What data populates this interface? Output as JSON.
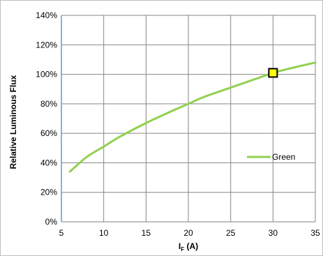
{
  "chart_data": {
    "type": "line",
    "ylabel": "Relative Luminous Flux",
    "xlabel_main": "I",
    "xlabel_sub": "F",
    "xlabel_unit": " (A)",
    "xlim": [
      5,
      35
    ],
    "ylim": [
      0,
      140
    ],
    "x_ticks": [
      5,
      10,
      15,
      20,
      25,
      30,
      35
    ],
    "x_tick_labels": [
      "5",
      "10",
      "15",
      "20",
      "25",
      "30",
      "35"
    ],
    "y_ticks": [
      0,
      20,
      40,
      60,
      80,
      100,
      120,
      140
    ],
    "y_tick_labels": [
      "0%",
      "20%",
      "40%",
      "60%",
      "80%",
      "100%",
      "120%",
      "140%"
    ],
    "grid": true,
    "legend_position": "right",
    "series": [
      {
        "name": "Green",
        "color": "#92d050",
        "x": [
          6,
          8,
          10,
          12,
          15,
          18,
          20,
          22,
          25,
          28,
          30,
          32,
          35
        ],
        "y": [
          34,
          44,
          51,
          58,
          67,
          75,
          80,
          85,
          91,
          97,
          101,
          104,
          108
        ]
      }
    ],
    "marker": {
      "x": 30,
      "y": 101,
      "fill": "#ffff00",
      "stroke": "#000000"
    }
  }
}
